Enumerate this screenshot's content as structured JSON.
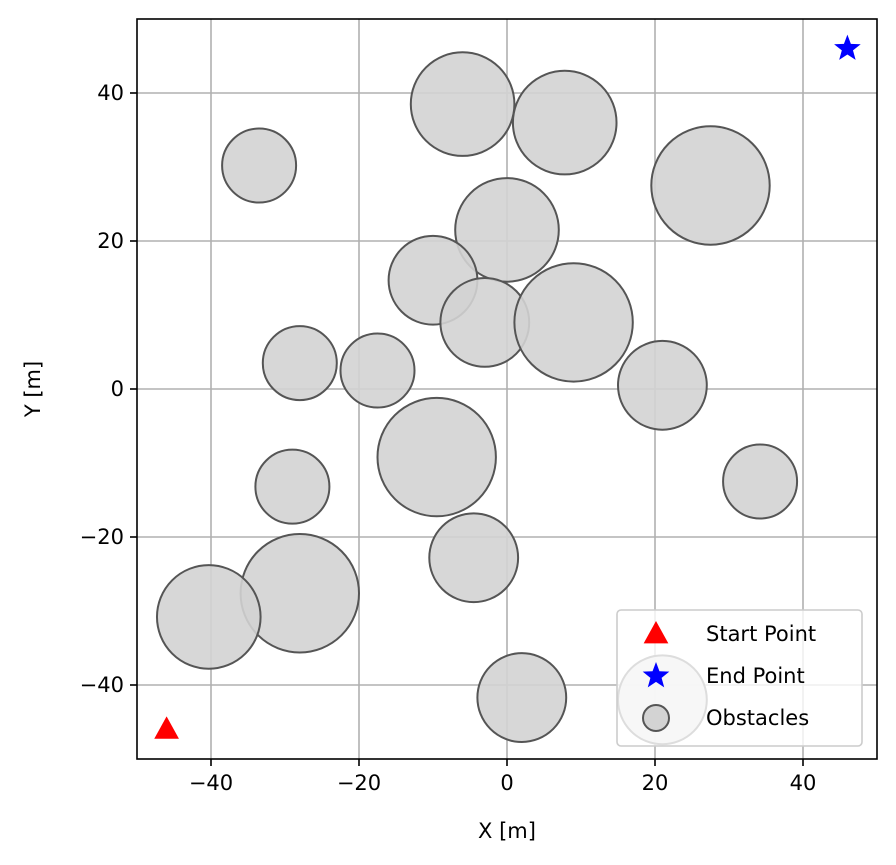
{
  "chart_data": {
    "type": "scatter",
    "title": "",
    "xlabel": "X [m]",
    "ylabel": "Y [m]",
    "xlim": [
      -50,
      50
    ],
    "ylim": [
      -50,
      50
    ],
    "xticks": [
      -40,
      -20,
      0,
      20,
      40
    ],
    "yticks": [
      -40,
      -20,
      0,
      20,
      40
    ],
    "xtick_labels": [
      "−40",
      "−20",
      "0",
      "20",
      "40"
    ],
    "ytick_labels": [
      "−40",
      "−20",
      "0",
      "20",
      "40"
    ],
    "grid": true,
    "legend_position": "bottom-right",
    "series": [
      {
        "name": "Start Point",
        "marker": "triangle",
        "color": "#ff0000",
        "points": [
          {
            "x": -46,
            "y": -46
          }
        ]
      },
      {
        "name": "End Point",
        "marker": "star",
        "color": "#0000ff",
        "points": [
          {
            "x": 46,
            "y": 46
          }
        ]
      },
      {
        "name": "Obstacles",
        "marker": "circle",
        "fill": "#d3d3d3",
        "edge": "#555555",
        "circles": [
          {
            "x": -6,
            "y": 38.5,
            "r": 7
          },
          {
            "x": 7.8,
            "y": 36,
            "r": 7
          },
          {
            "x": 27.5,
            "y": 27.5,
            "r": 8
          },
          {
            "x": -33.5,
            "y": 30.2,
            "r": 5
          },
          {
            "x": 0,
            "y": 21.5,
            "r": 7
          },
          {
            "x": -10,
            "y": 14.7,
            "r": 6
          },
          {
            "x": -3,
            "y": 9,
            "r": 6
          },
          {
            "x": 9,
            "y": 9,
            "r": 8
          },
          {
            "x": -28,
            "y": 3.5,
            "r": 5
          },
          {
            "x": -17.5,
            "y": 2.5,
            "r": 5
          },
          {
            "x": 21,
            "y": 0.5,
            "r": 6
          },
          {
            "x": -9.5,
            "y": -9.2,
            "r": 8
          },
          {
            "x": -29,
            "y": -13.2,
            "r": 5
          },
          {
            "x": 34.2,
            "y": -12.5,
            "r": 5
          },
          {
            "x": -4.5,
            "y": -22.8,
            "r": 6
          },
          {
            "x": -28,
            "y": -27.6,
            "r": 8
          },
          {
            "x": -40.3,
            "y": -30.8,
            "r": 7
          },
          {
            "x": 2,
            "y": -41.7,
            "r": 6
          },
          {
            "x": 21,
            "y": -42,
            "r": 6
          }
        ]
      }
    ]
  }
}
